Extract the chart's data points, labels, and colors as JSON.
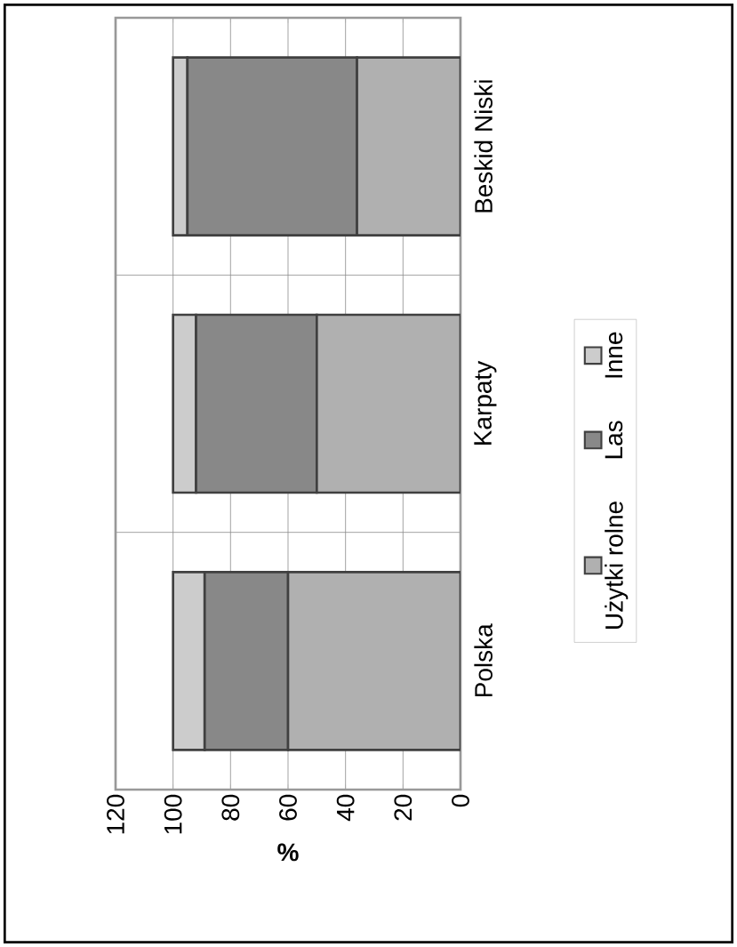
{
  "chart_data": {
    "type": "bar",
    "stacked": true,
    "orientation": "horizontal",
    "xlabel": "%",
    "categories": [
      "Beskid Niski",
      "Karpaty",
      "Polska"
    ],
    "series": [
      {
        "name": "Użytki rolne",
        "color": "#b0b0b0",
        "values": [
          36,
          50,
          60
        ]
      },
      {
        "name": "Las",
        "color": "#888888",
        "values": [
          59,
          42,
          29
        ]
      },
      {
        "name": "Inne",
        "color": "#cccccc",
        "values": [
          5,
          8,
          11
        ]
      }
    ],
    "xlim": [
      120,
      0
    ],
    "xticks": [
      0,
      20,
      40,
      60,
      80,
      100,
      120
    ],
    "grid": true,
    "legend": "right"
  }
}
